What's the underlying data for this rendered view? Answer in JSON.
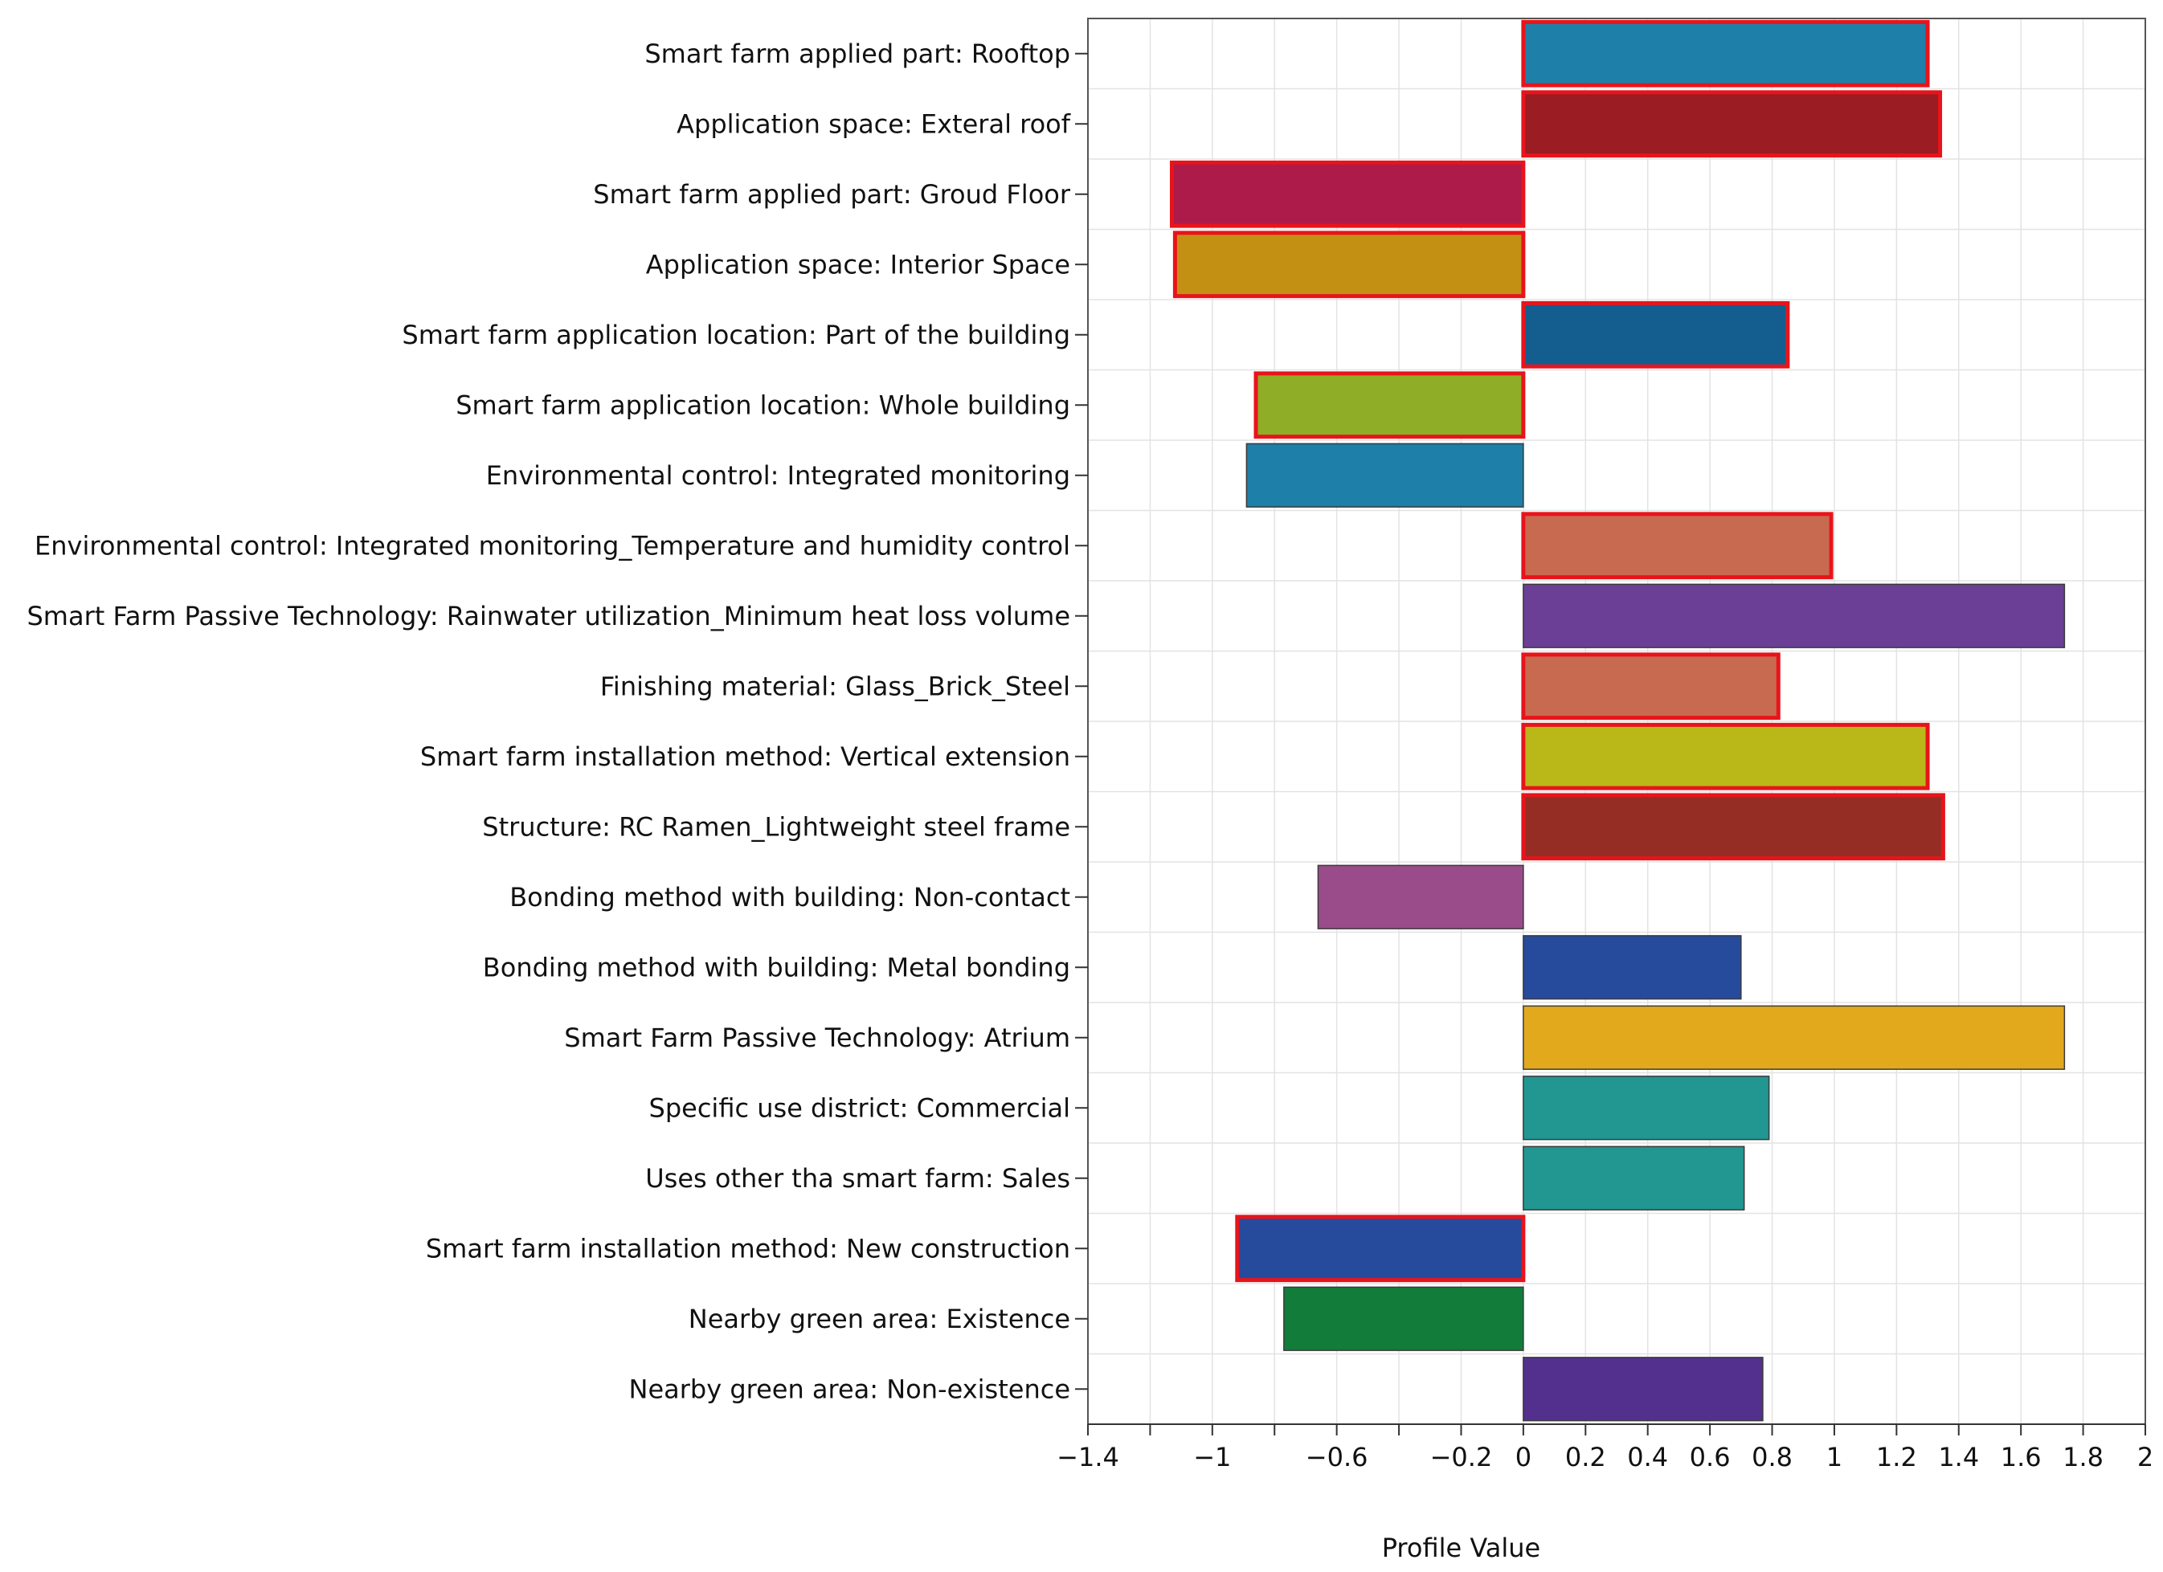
{
  "chart_data": {
    "type": "bar",
    "orientation": "horizontal",
    "title": "",
    "xlabel": "Profile Value",
    "ylabel": "",
    "xlim": [
      -1.4,
      2
    ],
    "x_ticks": [
      -1.4,
      -1.2,
      -1,
      -0.8,
      -0.6,
      -0.4,
      -0.2,
      0,
      0.2,
      0.4,
      0.6,
      0.8,
      1,
      1.2,
      1.4,
      1.6,
      1.8,
      2
    ],
    "x_tick_labels": [
      "−1.4",
      "",
      "−1",
      "",
      "−0.6",
      "",
      "−0.2",
      "0",
      "0.2",
      "0.4",
      "0.6",
      "0.8",
      "1",
      "1.2",
      "1.4",
      "1.6",
      "1.8",
      "2"
    ],
    "grid": true,
    "legend": "none",
    "highlight_color": "#e8141b",
    "bars": [
      {
        "label": "Smart farm applied part: Rooftop",
        "value": 1.3,
        "color": "#1e7fa8",
        "highlighted": true
      },
      {
        "label": "Application space: Exteral roof",
        "value": 1.34,
        "color": "#9b1c22",
        "highlighted": true
      },
      {
        "label": "Smart farm applied part: Groud Floor",
        "value": -1.13,
        "color": "#ad1b4b",
        "highlighted": true
      },
      {
        "label": "Application space: Interior Space",
        "value": -1.12,
        "color": "#c49014",
        "highlighted": true
      },
      {
        "label": "Smart farm application location: Part of the building",
        "value": 0.85,
        "color": "#135e8f",
        "highlighted": true
      },
      {
        "label": "Smart farm application location: Whole building",
        "value": -0.86,
        "color": "#8fad27",
        "highlighted": true
      },
      {
        "label": "Environmental control: Integrated monitoring",
        "value": -0.89,
        "color": "#1e7fa8",
        "highlighted": false
      },
      {
        "label": "Environmental control: Integrated monitoring_Temperature and humidity control",
        "value": 0.99,
        "color": "#c86a50",
        "highlighted": true
      },
      {
        "label": "Smart Farm Passive Technology: Rainwater utilization_Minimum heat loss volume",
        "value": 1.74,
        "color": "#6a3f95",
        "highlighted": false
      },
      {
        "label": "Finishing material: Glass_Brick_Steel",
        "value": 0.82,
        "color": "#c86a50",
        "highlighted": true
      },
      {
        "label": "Smart farm installation method: Vertical extension",
        "value": 1.3,
        "color": "#bab819",
        "highlighted": true
      },
      {
        "label": "Structure: RC Ramen_Lightweight steel frame",
        "value": 1.35,
        "color": "#952d24",
        "highlighted": true
      },
      {
        "label": "Bonding method with building: Non-contact",
        "value": -0.66,
        "color": "#994c89",
        "highlighted": false
      },
      {
        "label": "Bonding method with building: Metal bonding",
        "value": 0.7,
        "color": "#264b9c",
        "highlighted": false
      },
      {
        "label": "Smart Farm Passive Technology: Atrium",
        "value": 1.74,
        "color": "#e2a91c",
        "highlighted": false
      },
      {
        "label": "Specific use district: Commercial",
        "value": 0.79,
        "color": "#229690",
        "highlighted": false
      },
      {
        "label": "Uses other tha smart farm: Sales",
        "value": 0.71,
        "color": "#229690",
        "highlighted": false
      },
      {
        "label": "Smart farm installation method: New construction",
        "value": -0.92,
        "color": "#264b9c",
        "highlighted": true
      },
      {
        "label": "Nearby green area: Existence",
        "value": -0.77,
        "color": "#127d3a",
        "highlighted": false
      },
      {
        "label": "Nearby green area: Non-existence",
        "value": 0.77,
        "color": "#53308e",
        "highlighted": false
      }
    ]
  }
}
